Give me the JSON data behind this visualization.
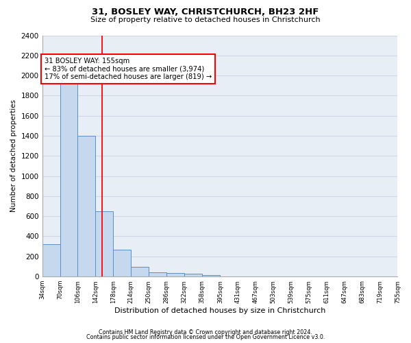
{
  "title1": "31, BOSLEY WAY, CHRISTCHURCH, BH23 2HF",
  "title2": "Size of property relative to detached houses in Christchurch",
  "xlabel": "Distribution of detached houses by size in Christchurch",
  "ylabel": "Number of detached properties",
  "footer1": "Contains HM Land Registry data © Crown copyright and database right 2024.",
  "footer2": "Contains public sector information licensed under the Open Government Licence v3.0.",
  "annotation_line1": "31 BOSLEY WAY: 155sqm",
  "annotation_line2": "← 83% of detached houses are smaller (3,974)",
  "annotation_line3": "17% of semi-detached houses are larger (819) →",
  "bin_edges": [
    34,
    70,
    106,
    142,
    178,
    214,
    250,
    286,
    322,
    358,
    395,
    431,
    467,
    503,
    539,
    575,
    611,
    647,
    683,
    719,
    755
  ],
  "bar_heights": [
    320,
    1960,
    1400,
    650,
    270,
    95,
    40,
    35,
    25,
    15,
    0,
    0,
    0,
    0,
    0,
    0,
    0,
    0,
    0,
    0
  ],
  "bar_color": "#c5d8ed",
  "bar_edge_color": "#5b8dc8",
  "tick_labels": [
    "34sqm",
    "70sqm",
    "106sqm",
    "142sqm",
    "178sqm",
    "214sqm",
    "250sqm",
    "286sqm",
    "322sqm",
    "358sqm",
    "395sqm",
    "431sqm",
    "467sqm",
    "503sqm",
    "539sqm",
    "575sqm",
    "611sqm",
    "647sqm",
    "683sqm",
    "719sqm",
    "755sqm"
  ],
  "ylim": [
    0,
    2400
  ],
  "yticks": [
    0,
    200,
    400,
    600,
    800,
    1000,
    1200,
    1400,
    1600,
    1800,
    2000,
    2200,
    2400
  ],
  "red_line_x": 155,
  "grid_color": "#d0d8e8",
  "background_color": "#e8eef5"
}
